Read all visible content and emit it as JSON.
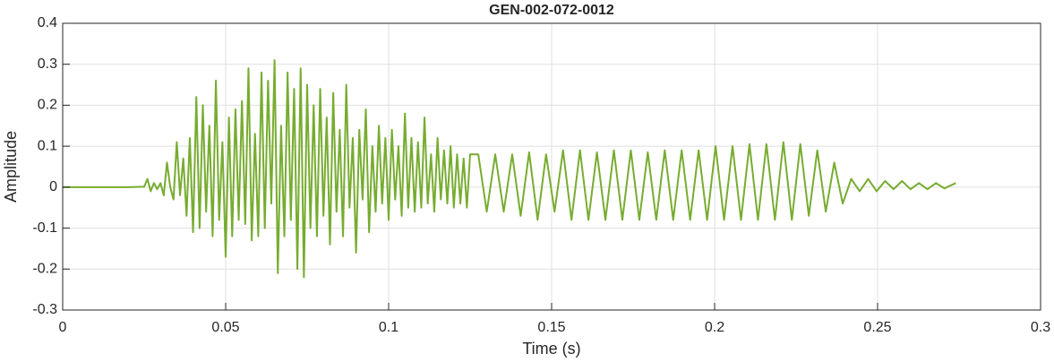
{
  "chart_data": {
    "type": "line",
    "title": "GEN-002-072-0012",
    "xlabel": "Time (s)",
    "ylabel": "Amplitude",
    "xlim": [
      0,
      0.3
    ],
    "xticks": [
      0,
      0.05,
      0.1,
      0.15,
      0.2,
      0.25,
      0.3
    ],
    "ylim": [
      -0.3,
      0.4
    ],
    "yticks": [
      -0.3,
      -0.2,
      -0.1,
      0,
      0.1,
      0.2,
      0.3,
      0.4
    ],
    "grid": true,
    "series": [
      {
        "color": "#77ac30",
        "x": [
          0,
          0.01,
          0.02,
          0.025,
          0.026,
          0.027,
          0.028,
          0.029,
          0.03,
          0.031,
          0.032,
          0.033,
          0.034,
          0.035,
          0.036,
          0.037,
          0.038,
          0.039,
          0.04,
          0.041,
          0.042,
          0.043,
          0.044,
          0.045,
          0.046,
          0.047,
          0.048,
          0.049,
          0.05,
          0.051,
          0.052,
          0.053,
          0.054,
          0.055,
          0.056,
          0.057,
          0.058,
          0.059,
          0.06,
          0.061,
          0.062,
          0.063,
          0.064,
          0.065,
          0.066,
          0.067,
          0.068,
          0.069,
          0.07,
          0.071,
          0.072,
          0.073,
          0.074,
          0.075,
          0.076,
          0.077,
          0.078,
          0.079,
          0.08,
          0.081,
          0.082,
          0.083,
          0.084,
          0.085,
          0.086,
          0.087,
          0.088,
          0.089,
          0.09,
          0.091,
          0.092,
          0.093,
          0.094,
          0.095,
          0.096,
          0.097,
          0.098,
          0.099,
          0.1,
          0.101,
          0.102,
          0.103,
          0.104,
          0.105,
          0.106,
          0.107,
          0.108,
          0.109,
          0.11,
          0.111,
          0.112,
          0.113,
          0.114,
          0.115,
          0.116,
          0.117,
          0.118,
          0.119,
          0.12,
          0.121,
          0.122,
          0.123,
          0.124,
          0.125,
          0.1275,
          0.1301,
          0.1327,
          0.1353,
          0.1379,
          0.1405,
          0.1431,
          0.1457,
          0.1483,
          0.1509,
          0.1535,
          0.1561,
          0.1587,
          0.1613,
          0.1639,
          0.1665,
          0.1691,
          0.1717,
          0.1743,
          0.1769,
          0.1795,
          0.1821,
          0.1847,
          0.1873,
          0.1899,
          0.1925,
          0.1951,
          0.1977,
          0.2003,
          0.2029,
          0.2055,
          0.2081,
          0.2107,
          0.2133,
          0.2159,
          0.2185,
          0.2211,
          0.2237,
          0.2263,
          0.2289,
          0.2315,
          0.2341,
          0.2367,
          0.2393,
          0.2419,
          0.2445,
          0.2471,
          0.2497,
          0.2523,
          0.2549,
          0.2575,
          0.2601,
          0.2627,
          0.2653,
          0.2679,
          0.2705,
          0.274
        ],
        "values": [
          0,
          0,
          0,
          0.001,
          0.02,
          -0.01,
          0.01,
          -0.005,
          0.01,
          -0.02,
          0.06,
          0,
          -0.03,
          0.11,
          -0.02,
          0.07,
          -0.07,
          0.12,
          -0.11,
          0.22,
          -0.1,
          0.2,
          -0.06,
          0.15,
          -0.12,
          0.26,
          -0.08,
          0.11,
          -0.17,
          0.17,
          -0.12,
          0.19,
          -0.08,
          0.21,
          -0.09,
          0.29,
          -0.13,
          0.13,
          -0.12,
          0.28,
          -0.1,
          0.26,
          -0.04,
          0.31,
          -0.21,
          0.15,
          -0.12,
          0.28,
          -0.08,
          0.24,
          -0.2,
          0.29,
          -0.22,
          0.25,
          -0.1,
          0.2,
          -0.12,
          0.24,
          -0.07,
          0.17,
          -0.14,
          0.23,
          -0.06,
          0.14,
          -0.12,
          0.25,
          -0.05,
          0.12,
          -0.16,
          0.14,
          -0.03,
          0.19,
          -0.11,
          0.1,
          -0.06,
          0.15,
          -0.04,
          0.12,
          -0.08,
          0.14,
          -0.03,
          0.1,
          -0.07,
          0.18,
          -0.05,
          0.12,
          -0.06,
          0.11,
          -0.05,
          0.17,
          -0.04,
          0.08,
          -0.06,
          0.12,
          -0.03,
          0.09,
          -0.04,
          0.1,
          -0.05,
          0.08,
          -0.04,
          0.07,
          -0.05,
          0.08,
          0.08,
          -0.06,
          0.08,
          -0.06,
          0.08,
          -0.07,
          0.085,
          -0.08,
          0.08,
          -0.06,
          0.09,
          -0.08,
          0.09,
          -0.08,
          0.085,
          -0.08,
          0.09,
          -0.08,
          0.09,
          -0.08,
          0.085,
          -0.08,
          0.09,
          -0.08,
          0.09,
          -0.08,
          0.09,
          -0.08,
          0.1,
          -0.08,
          0.1,
          -0.08,
          0.105,
          -0.08,
          0.105,
          -0.08,
          0.11,
          -0.08,
          0.105,
          -0.07,
          0.09,
          -0.06,
          0.06,
          -0.04,
          0.02,
          -0.01,
          0.02,
          -0.01,
          0.015,
          -0.005,
          0.015,
          -0.005,
          0.01,
          -0.005,
          0.01,
          -0.003,
          0.01
        ]
      }
    ]
  }
}
